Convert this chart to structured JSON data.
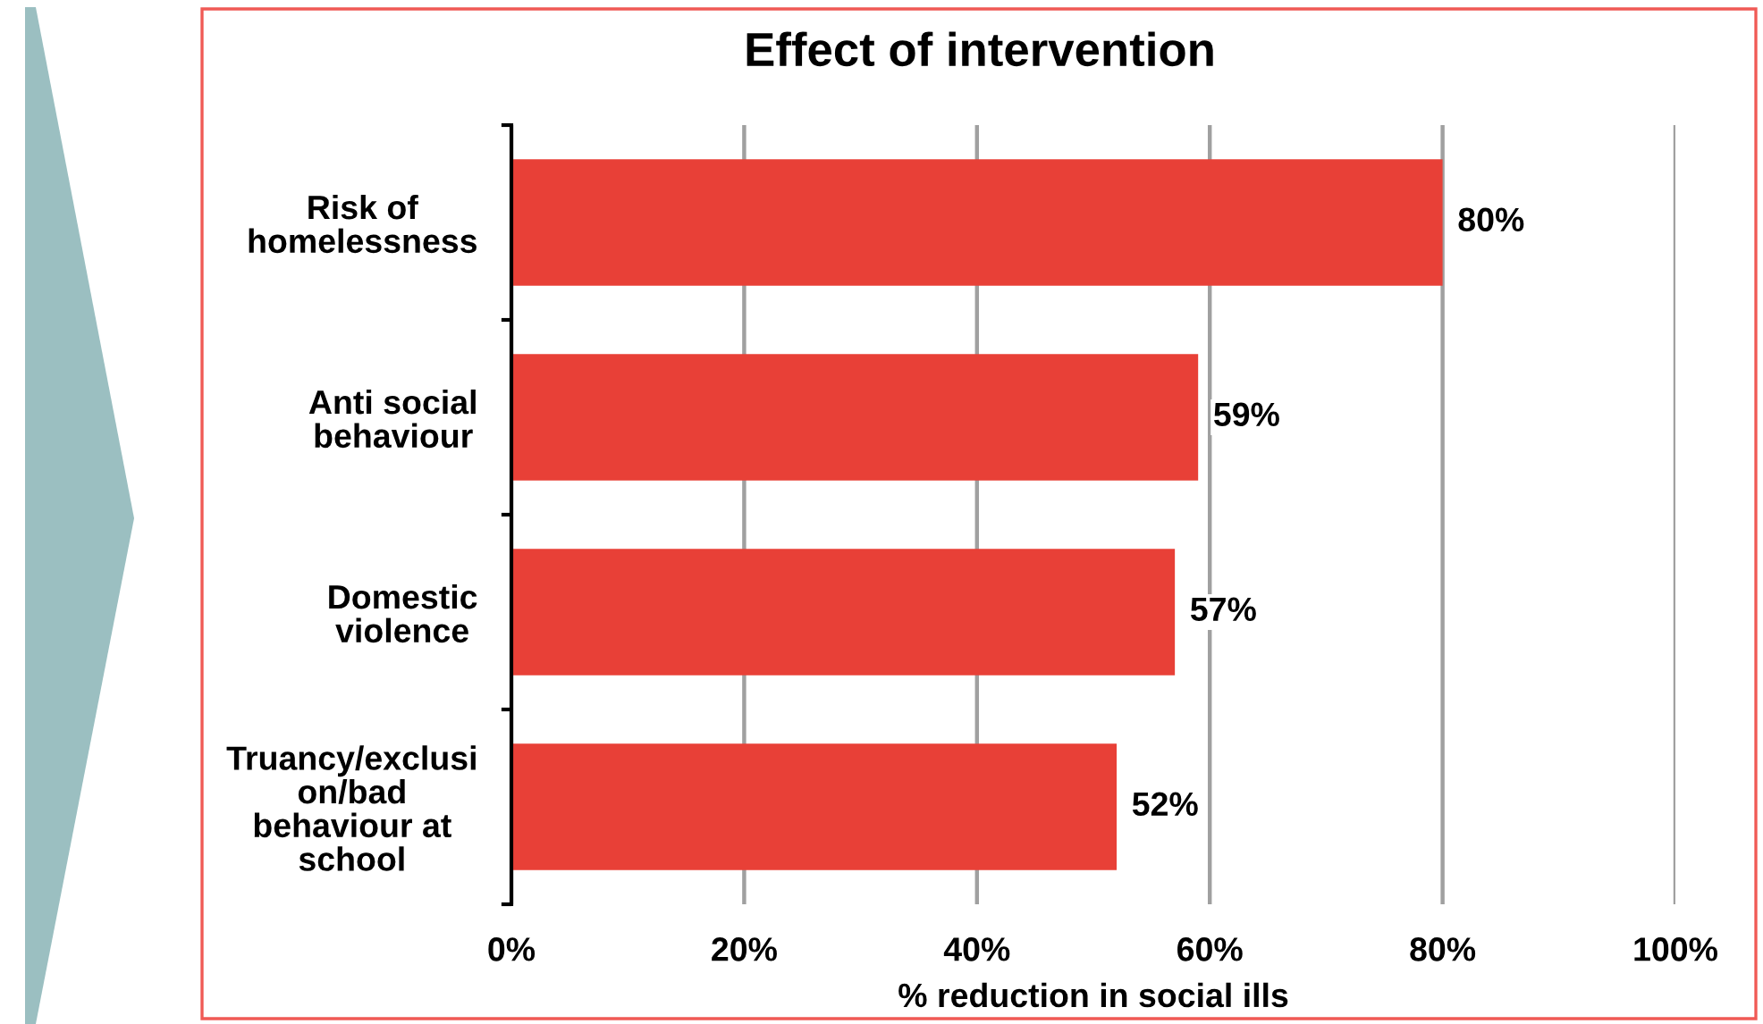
{
  "chart_data": {
    "type": "bar",
    "orientation": "horizontal",
    "title": "Effect of intervention",
    "xlabel": "% reduction in social ills",
    "categories": [
      "Risk of\nhomelessness",
      "Anti social\nbehaviour",
      "Domestic\nviolence",
      "Truancy/exclusi\non/bad\nbehaviour at\nschool"
    ],
    "values": [
      80,
      59,
      57,
      52
    ],
    "color": "#e84037",
    "value_labels": [
      "80%",
      "59%",
      "57%",
      "52%"
    ],
    "xlim": [
      0,
      100
    ],
    "xticks": [
      {
        "value": 0,
        "label": "0%"
      },
      {
        "value": 20,
        "label": "20%"
      },
      {
        "value": 40,
        "label": "40%"
      },
      {
        "value": 60,
        "label": "60%"
      },
      {
        "value": 80,
        "label": "80%"
      },
      {
        "value": 100,
        "label": "100%"
      }
    ],
    "grid": "x"
  }
}
